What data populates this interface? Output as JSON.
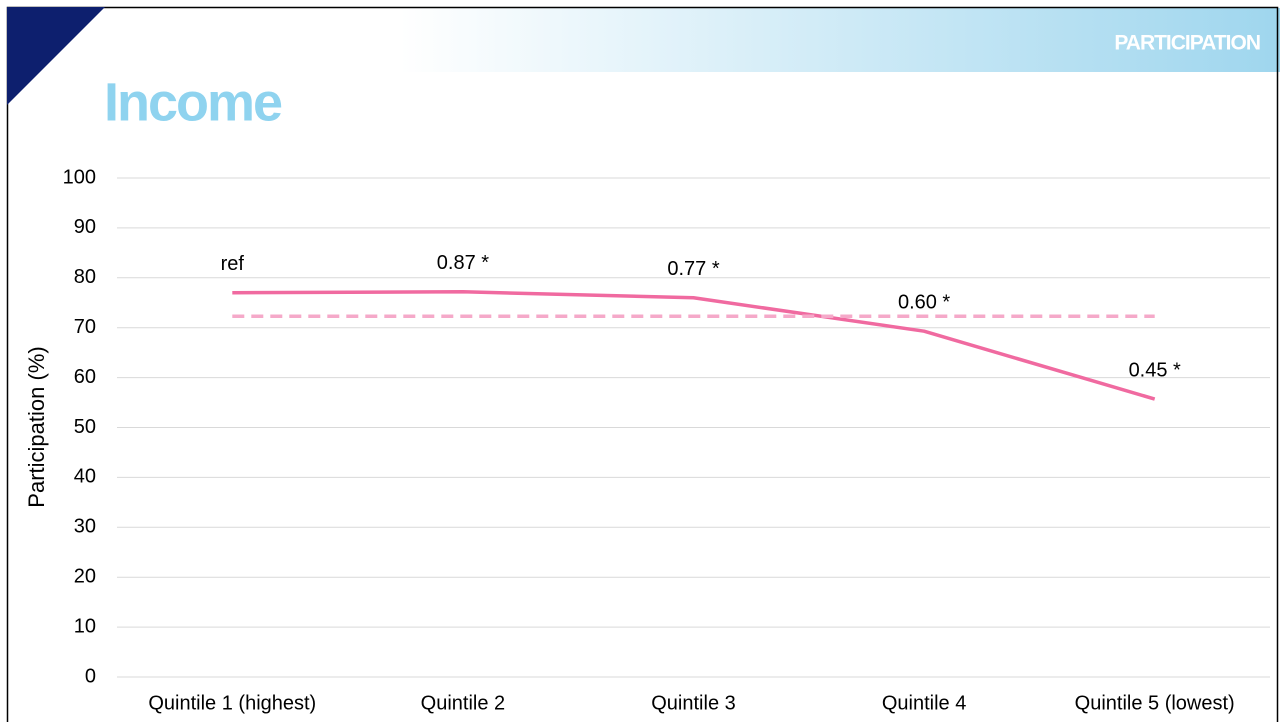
{
  "header": {
    "section": "PARTICIPATION",
    "title": "Income"
  },
  "chart_data": {
    "type": "line",
    "y_label": "Participation (%)",
    "categories": [
      "Quintile 1 (highest)",
      "Quintile 2",
      "Quintile 3",
      "Quintile 4",
      "Quintile 5 (lowest)"
    ],
    "series": [
      {
        "color": "#f06aa0",
        "dashed": false,
        "values": [
          77.0,
          77.2,
          76.0,
          69.3,
          55.7
        ],
        "point_labels": [
          "ref",
          "0.87 *",
          "0.77 *",
          "0.60 *",
          "0.45 *"
        ]
      },
      {
        "color": "#f5a9c9",
        "dashed": true,
        "values": [
          72.3,
          72.3,
          72.3,
          72.3,
          72.3
        ]
      }
    ],
    "ylim": [
      0,
      100
    ],
    "yticks": [
      0,
      10,
      20,
      30,
      40,
      50,
      60,
      70,
      80,
      90,
      100
    ],
    "grid": true
  }
}
